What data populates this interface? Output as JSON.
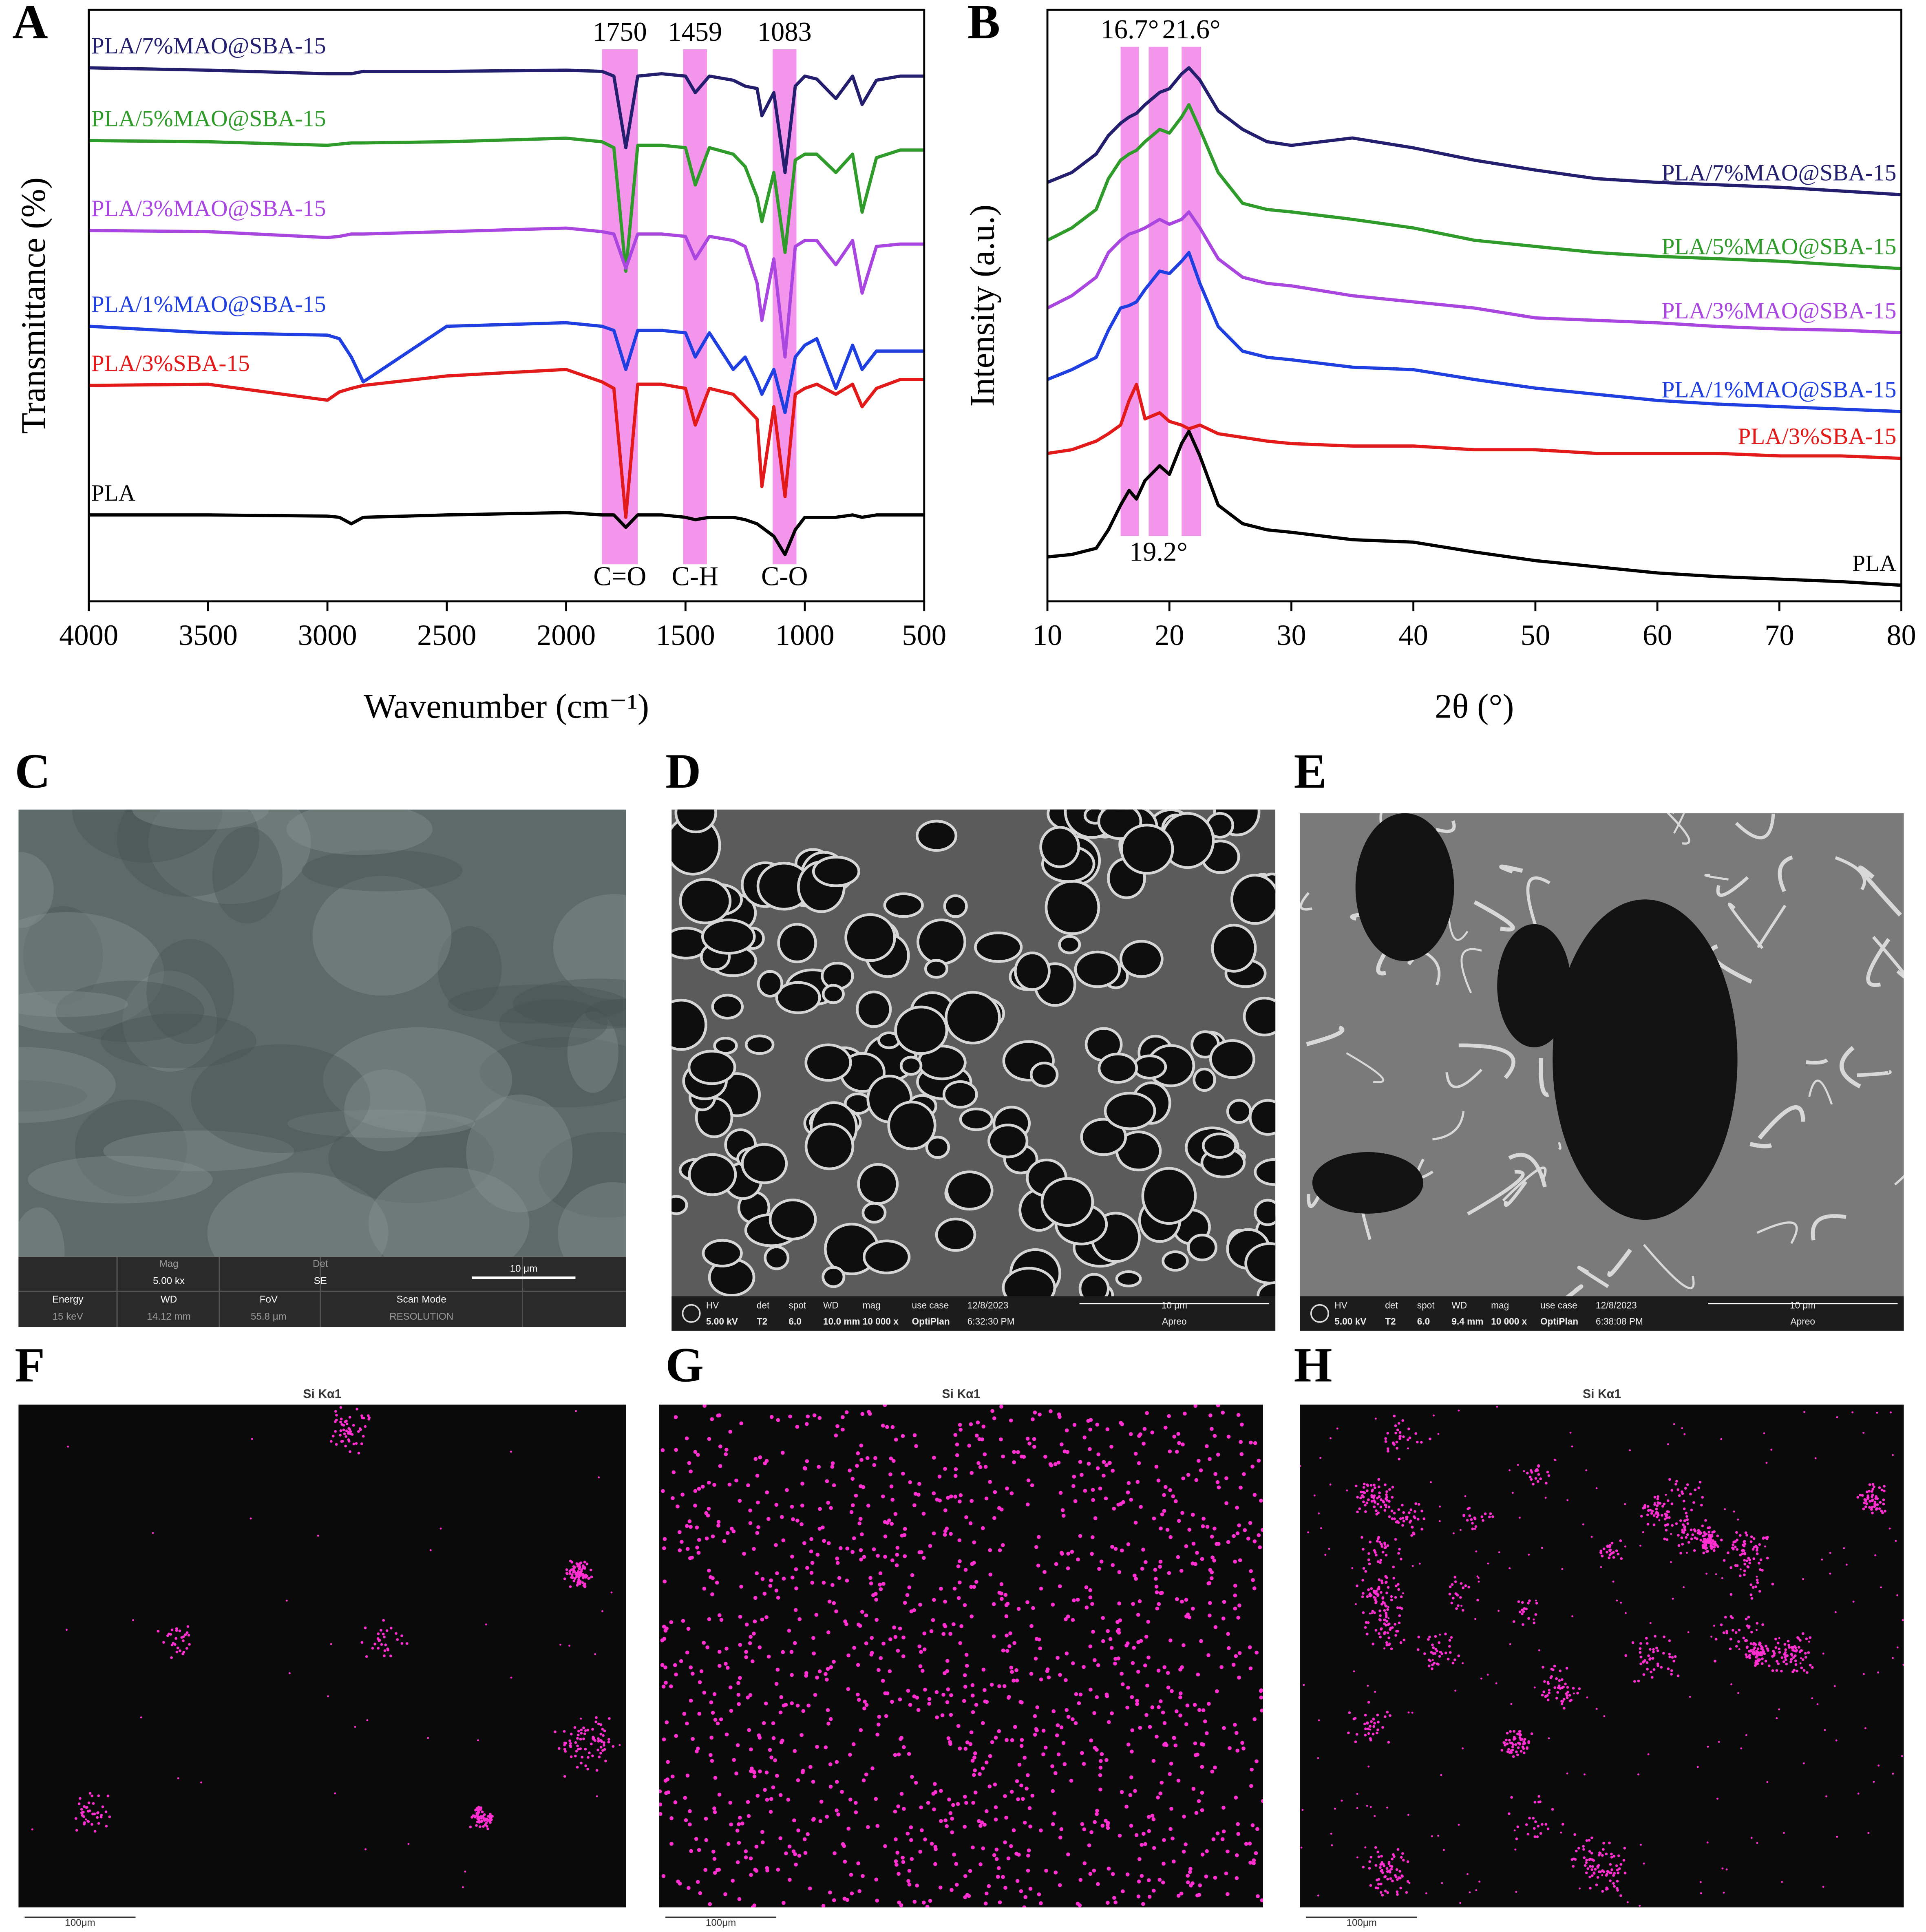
{
  "chart_data": [
    {
      "type": "line",
      "panel": "A",
      "x_label": "Wavenumber (cm⁻¹)",
      "y_label": "Transmittance (%)",
      "xlim": [
        4000,
        500
      ],
      "xticks": [
        4000,
        3500,
        3000,
        2500,
        2000,
        1500,
        1000,
        500
      ],
      "ylim": [
        0,
        100
      ],
      "label_side": "left",
      "band_color": "#f07ce6",
      "bands": [
        {
          "range": [
            1850,
            1700
          ],
          "top_label": "1750",
          "bottom_label": "C=O"
        },
        {
          "range": [
            1510,
            1410
          ],
          "top_label": "1459",
          "bottom_label": "C-H"
        },
        {
          "range": [
            1135,
            1035
          ],
          "top_label": "1083",
          "bottom_label": "C-O"
        }
      ],
      "x": [
        4000,
        3500,
        3000,
        2950,
        2900,
        2850,
        2500,
        2000,
        1850,
        1800,
        1750,
        1700,
        1600,
        1500,
        1459,
        1400,
        1300,
        1250,
        1200,
        1180,
        1130,
        1083,
        1040,
        1000,
        950,
        870,
        800,
        760,
        700,
        600,
        500
      ],
      "series": [
        {
          "name": "PLA/7%MAO@SBA-15",
          "color": "#241e6e",
          "values": [
            90.2,
            89.8,
            89.2,
            89.2,
            89.2,
            89.6,
            89.6,
            89.8,
            89.6,
            88.8,
            76.7,
            88.8,
            89.2,
            88.8,
            86.0,
            88.8,
            88.1,
            87.1,
            86.7,
            82.1,
            86.0,
            72.5,
            87.1,
            88.8,
            88.3,
            85.0,
            88.8,
            84.0,
            88.1,
            88.8,
            88.8
          ]
        },
        {
          "name": "PLA/5%MAO@SBA-15",
          "color": "#2f9b2a",
          "values": [
            77.9,
            77.7,
            77.1,
            77.3,
            77.5,
            77.5,
            77.7,
            78.3,
            77.7,
            76.7,
            55.8,
            77.1,
            77.1,
            76.7,
            70.4,
            76.7,
            75.6,
            73.5,
            68.3,
            64.2,
            72.5,
            59.0,
            74.6,
            75.6,
            75.6,
            72.5,
            75.6,
            65.8,
            75.0,
            76.3,
            76.3
          ]
        },
        {
          "name": "PLA/3%MAO@SBA-15",
          "color": "#a946e0",
          "values": [
            62.7,
            62.5,
            61.5,
            61.7,
            62.1,
            62.1,
            62.5,
            63.1,
            62.5,
            62.1,
            56.3,
            62.1,
            62.1,
            61.7,
            57.9,
            61.7,
            61.0,
            60.0,
            53.8,
            47.5,
            57.9,
            41.3,
            60.0,
            61.0,
            61.0,
            56.9,
            61.0,
            52.1,
            60.0,
            60.4,
            60.4
          ]
        },
        {
          "name": "PLA/1%MAO@SBA-15",
          "color": "#1f3fe0",
          "values": [
            46.5,
            45.4,
            45.0,
            44.4,
            41.3,
            37.1,
            46.5,
            47.1,
            46.5,
            45.8,
            39.2,
            45.8,
            45.8,
            45.4,
            41.3,
            45.4,
            39.2,
            41.3,
            37.1,
            35.0,
            39.2,
            31.9,
            41.3,
            43.3,
            44.4,
            36.0,
            43.3,
            39.2,
            42.3,
            42.3,
            42.3
          ]
        },
        {
          "name": "PLA/3%SBA-15",
          "color": "#e31a1a",
          "values": [
            36.5,
            36.7,
            34.0,
            35.4,
            36.0,
            36.5,
            38.1,
            39.2,
            37.1,
            36.0,
            14.2,
            36.7,
            36.7,
            36.0,
            29.8,
            36.0,
            35.0,
            32.9,
            30.8,
            19.4,
            32.9,
            17.7,
            35.0,
            36.0,
            36.7,
            35.0,
            36.7,
            32.9,
            36.0,
            37.5,
            37.5
          ]
        },
        {
          "name": "PLA",
          "color": "#000000",
          "values": [
            14.6,
            14.6,
            14.4,
            14.2,
            13.1,
            14.2,
            14.6,
            15.0,
            14.6,
            14.6,
            12.5,
            14.6,
            14.6,
            14.2,
            13.8,
            14.2,
            14.2,
            13.8,
            13.1,
            12.5,
            11.0,
            7.9,
            12.1,
            14.2,
            14.2,
            14.2,
            14.6,
            14.2,
            14.6,
            14.6,
            14.6
          ]
        }
      ]
    },
    {
      "type": "line",
      "panel": "B",
      "x_label": "2θ (°)",
      "y_label": "Intensity (a.u.)",
      "xlim": [
        10,
        80
      ],
      "xticks": [
        10,
        20,
        30,
        40,
        50,
        60,
        70,
        80
      ],
      "ylim": [
        0,
        480
      ],
      "label_side": "right",
      "band_color": "#f07ce6",
      "bands": [
        {
          "range": [
            16,
            17.5
          ],
          "top_label": "16.7°"
        },
        {
          "range": [
            18.3,
            19.9
          ],
          "bottom_label": "19.2°"
        },
        {
          "range": [
            21,
            22.6
          ],
          "top_label": "21.6°"
        }
      ],
      "x": [
        10,
        12,
        14,
        15,
        16,
        16.7,
        17.3,
        18,
        19.2,
        20,
        21,
        21.6,
        22.5,
        24,
        26,
        28,
        30,
        35,
        40,
        45,
        50,
        55,
        60,
        65,
        70,
        75,
        80
      ],
      "series": [
        {
          "name": "PLA/7%MAO@SBA-15",
          "color": "#241e6e",
          "values": [
            340,
            348,
            363,
            378,
            388,
            393,
            396,
            403,
            413,
            416,
            428,
            433,
            423,
            398,
            383,
            373,
            370,
            376,
            368,
            358,
            350,
            343,
            340,
            338,
            336,
            333,
            330
          ]
        },
        {
          "name": "PLA/5%MAO@SBA-15",
          "color": "#2f9b2a",
          "values": [
            293,
            303,
            318,
            343,
            358,
            363,
            366,
            373,
            383,
            380,
            393,
            403,
            383,
            348,
            323,
            318,
            316,
            310,
            303,
            293,
            288,
            283,
            280,
            278,
            276,
            273,
            270
          ]
        },
        {
          "name": "PLA/3%MAO@SBA-15",
          "color": "#a946e0",
          "values": [
            238,
            248,
            263,
            283,
            293,
            298,
            300,
            303,
            310,
            306,
            310,
            316,
            303,
            278,
            263,
            258,
            256,
            248,
            243,
            238,
            230,
            228,
            226,
            223,
            221,
            220,
            218
          ]
        },
        {
          "name": "PLA/1%MAO@SBA-15",
          "color": "#1f3fe0",
          "values": [
            180,
            188,
            198,
            220,
            238,
            240,
            243,
            253,
            268,
            266,
            276,
            283,
            258,
            223,
            203,
            198,
            196,
            190,
            188,
            180,
            173,
            168,
            163,
            160,
            158,
            156,
            154
          ]
        },
        {
          "name": "PLA/3%SBA-15",
          "color": "#e31a1a",
          "values": [
            120,
            123,
            130,
            136,
            143,
            163,
            176,
            148,
            153,
            146,
            143,
            140,
            143,
            136,
            133,
            130,
            128,
            126,
            126,
            123,
            123,
            120,
            120,
            120,
            118,
            118,
            116
          ]
        },
        {
          "name": "PLA",
          "color": "#000000",
          "values": [
            36,
            38,
            43,
            58,
            78,
            90,
            83,
            98,
            110,
            103,
            128,
            138,
            118,
            78,
            63,
            58,
            56,
            50,
            48,
            40,
            33,
            28,
            23,
            20,
            18,
            16,
            13
          ]
        }
      ]
    }
  ],
  "panels": [
    {
      "letter": "C",
      "bar": [
        "Mag",
        "5.00 kx",
        "Det",
        "SE",
        "10 μm",
        "Energy",
        "15 keV",
        "WD",
        "14.12 mm",
        "FoV",
        "55.8 μm",
        "Scan Mode",
        "RESOLUTION"
      ]
    },
    {
      "letter": "D",
      "bar": [
        "HV",
        "5.00 kV",
        "det",
        "T2",
        "spot",
        "6.0",
        "WD",
        "10.0 mm",
        "mag",
        "10 000 x",
        "use case",
        "OptiPlan",
        "12/8/2023",
        "6:32:30 PM",
        "10 μm",
        "Apreo"
      ]
    },
    {
      "letter": "E",
      "bar": [
        "HV",
        "5.00 kV",
        "det",
        "T2",
        "spot",
        "6.0",
        "WD",
        "9.4 mm",
        "mag",
        "10 000 x",
        "use case",
        "OptiPlan",
        "12/8/2023",
        "6:38:08 PM",
        "10 μm",
        "Apreo"
      ]
    },
    {
      "letter": "F",
      "title": "Si Kα1",
      "scale": "100μm"
    },
    {
      "letter": "G",
      "title": "Si Kα1",
      "scale": "100μm"
    },
    {
      "letter": "H",
      "title": "Si Kα1",
      "scale": "100μm"
    }
  ]
}
